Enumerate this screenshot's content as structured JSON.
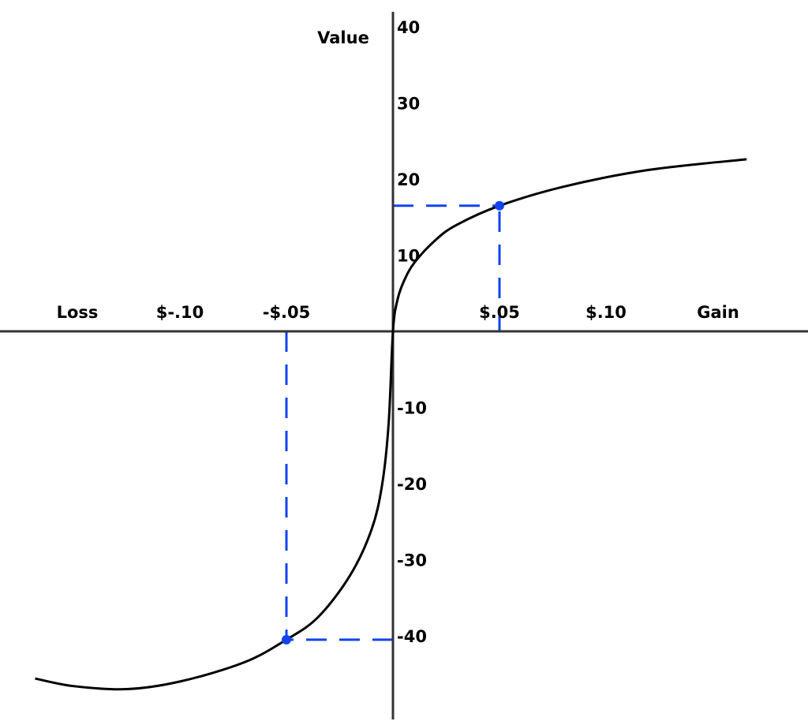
{
  "chart_data": {
    "type": "line",
    "title": "",
    "xlabel_left": "Loss",
    "xlabel_right": "Gain",
    "ylabel": "Value",
    "xlim": [
      -0.168,
      0.166
    ],
    "ylim": [
      -50,
      40
    ],
    "x_ticks": [
      {
        "value": -0.1,
        "label": "$-.10"
      },
      {
        "value": -0.05,
        "label": "-$.05"
      },
      {
        "value": 0.05,
        "label": "$.05"
      },
      {
        "value": 0.1,
        "label": "$.10"
      }
    ],
    "y_ticks": [
      {
        "value": 40,
        "label": "40"
      },
      {
        "value": 30,
        "label": "30"
      },
      {
        "value": 20,
        "label": "20"
      },
      {
        "value": 10,
        "label": "10"
      },
      {
        "value": -10,
        "label": "-10"
      },
      {
        "value": -20,
        "label": "-20"
      },
      {
        "value": -30,
        "label": "-30"
      },
      {
        "value": -40,
        "label": "-40"
      }
    ],
    "curve": {
      "x": [
        -0.168,
        -0.15,
        -0.125,
        -0.1,
        -0.07,
        -0.05,
        -0.035,
        -0.02,
        -0.01,
        -0.005,
        -0.002,
        0,
        0.002,
        0.005,
        0.01,
        0.02,
        0.03,
        0.05,
        0.08,
        0.12,
        0.166
      ],
      "y": [
        -45.6,
        -46.6,
        -47,
        -46,
        -43.5,
        -40.5,
        -37.5,
        -32,
        -26,
        -20,
        -12,
        0,
        4,
        6.5,
        9,
        12,
        14,
        16.5,
        19,
        21.2,
        22.6
      ]
    },
    "highlighted_points": [
      {
        "x": 0.05,
        "y": 16.5
      },
      {
        "x": -0.05,
        "y": -40.5
      }
    ],
    "colors": {
      "curve": "#000000",
      "highlight": "#1144ee",
      "axes": "#333333"
    },
    "grid": false,
    "legend": "none"
  }
}
